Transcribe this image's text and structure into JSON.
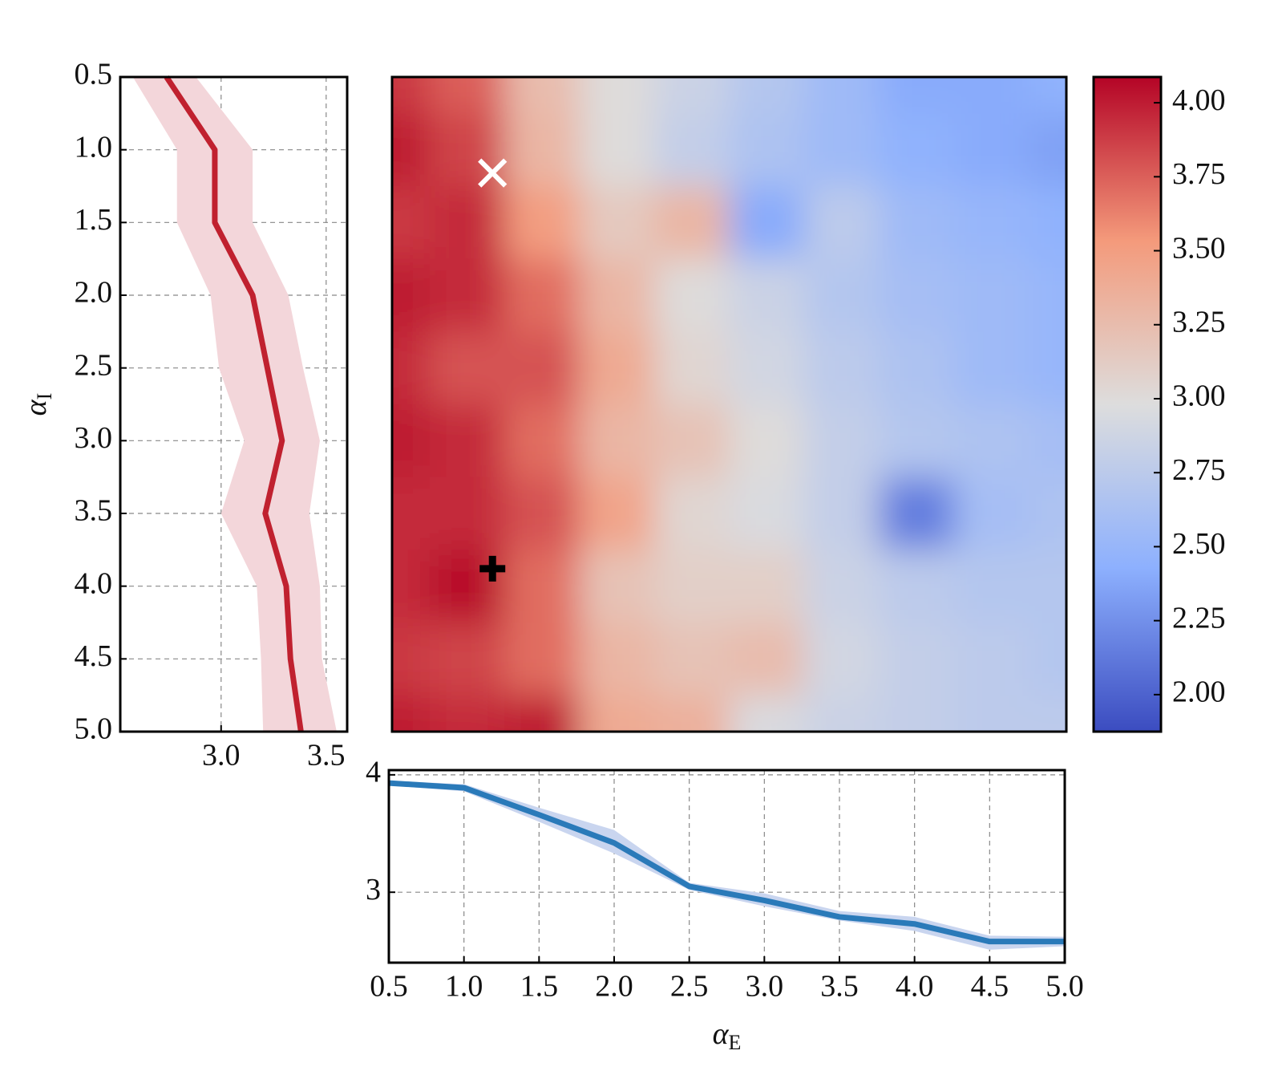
{
  "chart_data": [
    {
      "type": "line",
      "orientation": "horizontal",
      "ylabel": {
        "symbol": "α",
        "subscript": "I"
      },
      "y": [
        0.5,
        1.0,
        1.5,
        2.0,
        2.5,
        3.0,
        3.5,
        4.0,
        4.5,
        5.0
      ],
      "values": [
        2.74,
        2.97,
        2.97,
        3.15,
        3.22,
        3.29,
        3.21,
        3.31,
        3.33,
        3.38
      ],
      "lower": [
        2.58,
        2.79,
        2.79,
        2.95,
        2.99,
        3.11,
        3.0,
        3.17,
        3.19,
        3.2
      ],
      "upper": [
        2.88,
        3.15,
        3.15,
        3.32,
        3.39,
        3.47,
        3.42,
        3.47,
        3.48,
        3.55
      ],
      "color": "#c0212f",
      "band_color": "#f3d6da",
      "xlim": [
        2.52,
        3.6
      ],
      "ylim": [
        0.5,
        5.0
      ],
      "y_inverted": true,
      "xticks": [
        {
          "value": 3.0,
          "label": "3.0"
        },
        {
          "value": 3.5,
          "label": "3.5"
        }
      ],
      "yticks": [
        {
          "value": 0.5,
          "label": "0.5"
        },
        {
          "value": 1.0,
          "label": "1.0"
        },
        {
          "value": 1.5,
          "label": "1.5"
        },
        {
          "value": 2.0,
          "label": "2.0"
        },
        {
          "value": 2.5,
          "label": "2.5"
        },
        {
          "value": 3.0,
          "label": "3.0"
        },
        {
          "value": 3.5,
          "label": "3.5"
        },
        {
          "value": 4.0,
          "label": "4.0"
        },
        {
          "value": 4.5,
          "label": "4.5"
        },
        {
          "value": 5.0,
          "label": "5.0"
        }
      ],
      "grid": true
    },
    {
      "type": "heatmap",
      "x": [
        0.5,
        1.0,
        1.5,
        2.0,
        2.5,
        3.0,
        3.5,
        4.0,
        4.5,
        5.0
      ],
      "y": [
        0.5,
        1.0,
        1.5,
        2.0,
        2.5,
        3.0,
        3.5,
        4.0,
        4.5,
        5.0
      ],
      "z": [
        [
          3.9,
          3.75,
          3.25,
          3.0,
          2.85,
          2.7,
          2.55,
          2.4,
          2.4,
          2.45
        ],
        [
          4.0,
          3.85,
          3.3,
          3.0,
          2.8,
          2.65,
          2.55,
          2.45,
          2.4,
          2.35
        ],
        [
          3.9,
          3.95,
          3.5,
          3.15,
          3.3,
          2.4,
          2.75,
          2.55,
          2.5,
          2.45
        ],
        [
          4.0,
          3.95,
          3.7,
          3.3,
          3.0,
          2.85,
          2.7,
          2.6,
          2.55,
          2.5
        ],
        [
          3.95,
          3.8,
          3.8,
          3.4,
          3.05,
          2.9,
          2.75,
          2.65,
          2.55,
          2.5
        ],
        [
          4.0,
          3.95,
          3.7,
          3.3,
          3.2,
          3.0,
          2.8,
          2.7,
          2.65,
          2.6
        ],
        [
          3.95,
          3.95,
          3.8,
          3.45,
          3.05,
          2.95,
          2.8,
          2.15,
          2.6,
          2.65
        ],
        [
          3.95,
          4.05,
          3.7,
          3.2,
          3.1,
          3.1,
          2.85,
          2.75,
          2.7,
          2.7
        ],
        [
          3.9,
          3.85,
          3.7,
          3.3,
          3.2,
          3.25,
          2.9,
          2.8,
          2.75,
          2.7
        ],
        [
          4.0,
          3.95,
          4.0,
          3.4,
          3.35,
          2.95,
          2.85,
          2.8,
          2.75,
          2.75
        ]
      ],
      "xlim": [
        0.5,
        5.0
      ],
      "ylim": [
        0.5,
        5.0
      ],
      "y_inverted": true,
      "colormap": [
        "#3b4cc0",
        "#8db0fe",
        "#dddddd",
        "#f49a7b",
        "#b40426"
      ],
      "clim": [
        1.875,
        4.087
      ],
      "cticks": [
        {
          "value": 2.0,
          "label": "2.00"
        },
        {
          "value": 2.25,
          "label": "2.25"
        },
        {
          "value": 2.5,
          "label": "2.50"
        },
        {
          "value": 2.75,
          "label": "2.75"
        },
        {
          "value": 3.0,
          "label": "3.00"
        },
        {
          "value": 3.25,
          "label": "3.25"
        },
        {
          "value": 3.5,
          "label": "3.50"
        },
        {
          "value": 3.75,
          "label": "3.75"
        },
        {
          "value": 4.0,
          "label": "4.00"
        }
      ],
      "markers": [
        {
          "x": 1.17,
          "y": 1.16,
          "symbol": "x",
          "color": "#ffffff"
        },
        {
          "x": 1.17,
          "y": 3.88,
          "symbol": "plus",
          "color": "#000000"
        }
      ]
    },
    {
      "type": "line",
      "orientation": "vertical",
      "xlabel": {
        "symbol": "α",
        "subscript": "E"
      },
      "x": [
        0.5,
        1.0,
        1.5,
        2.0,
        2.5,
        3.0,
        3.5,
        4.0,
        4.5,
        5.0
      ],
      "values": [
        3.93,
        3.89,
        3.66,
        3.42,
        3.05,
        2.93,
        2.79,
        2.73,
        2.58,
        2.58
      ],
      "lower": [
        3.91,
        3.86,
        3.6,
        3.33,
        3.02,
        2.88,
        2.76,
        2.67,
        2.51,
        2.54
      ],
      "upper": [
        3.95,
        3.92,
        3.72,
        3.53,
        3.08,
        2.99,
        2.84,
        2.79,
        2.63,
        2.62
      ],
      "color": "#2a7ab9",
      "band_color": "#c9d5ef",
      "xlim": [
        0.5,
        5.0
      ],
      "ylim": [
        2.4,
        4.04
      ],
      "xticks": [
        {
          "value": 0.5,
          "label": "0.5"
        },
        {
          "value": 1.0,
          "label": "1.0"
        },
        {
          "value": 1.5,
          "label": "1.5"
        },
        {
          "value": 2.0,
          "label": "2.0"
        },
        {
          "value": 2.5,
          "label": "2.5"
        },
        {
          "value": 3.0,
          "label": "3.0"
        },
        {
          "value": 3.5,
          "label": "3.5"
        },
        {
          "value": 4.0,
          "label": "4.0"
        },
        {
          "value": 4.5,
          "label": "4.5"
        },
        {
          "value": 5.0,
          "label": "5.0"
        }
      ],
      "yticks": [
        3,
        4
      ],
      "grid": true
    }
  ]
}
